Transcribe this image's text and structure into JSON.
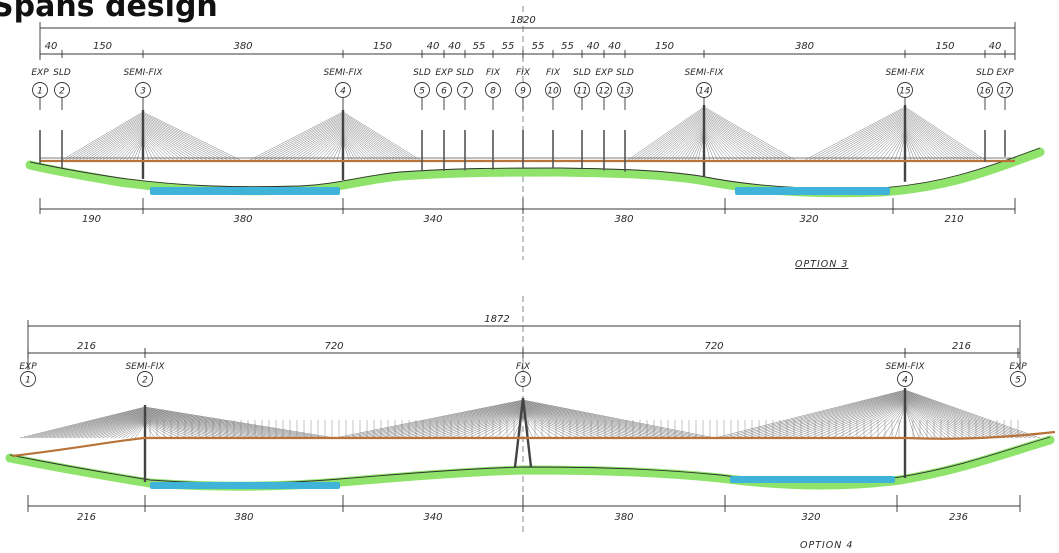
{
  "title_partial": "Spans design",
  "option3": {
    "title": "OPTION 3",
    "total": "1820",
    "top_spans": [
      "40",
      "150",
      "380",
      "150",
      "40",
      "40",
      "55",
      "55",
      "55",
      "55",
      "40",
      "40",
      "150",
      "380",
      "150",
      "40"
    ],
    "bottom_spans": [
      "190",
      "380",
      "340",
      "380",
      "320",
      "210"
    ],
    "supports": [
      {
        "num": "1",
        "type": "EXP"
      },
      {
        "num": "2",
        "type": "SLD"
      },
      {
        "num": "3",
        "type": "SEMI-FIX"
      },
      {
        "num": "4",
        "type": "SEMI-FIX"
      },
      {
        "num": "5",
        "type": "SLD"
      },
      {
        "num": "6",
        "type": "EXP"
      },
      {
        "num": "7",
        "type": "SLD"
      },
      {
        "num": "8",
        "type": "FIX"
      },
      {
        "num": "9",
        "type": "FIX"
      },
      {
        "num": "10",
        "type": "FIX"
      },
      {
        "num": "11",
        "type": "SLD"
      },
      {
        "num": "12",
        "type": "EXP"
      },
      {
        "num": "13",
        "type": "SLD"
      },
      {
        "num": "14",
        "type": "SEMI-FIX"
      },
      {
        "num": "15",
        "type": "SEMI-FIX"
      },
      {
        "num": "16",
        "type": "SLD"
      },
      {
        "num": "17",
        "type": "EXP"
      }
    ]
  },
  "option4": {
    "title": "OPTION 4",
    "total": "1872",
    "top_spans": [
      "216",
      "720",
      "720",
      "216"
    ],
    "bottom_spans": [
      "216",
      "380",
      "340",
      "380",
      "320",
      "236"
    ],
    "supports": [
      {
        "num": "1",
        "type": "EXP"
      },
      {
        "num": "2",
        "type": "SEMI-FIX"
      },
      {
        "num": "3",
        "type": "FIX"
      },
      {
        "num": "4",
        "type": "SEMI-FIX"
      },
      {
        "num": "5",
        "type": "EXP"
      }
    ]
  },
  "colors": {
    "ground": "#8fe36a",
    "water": "#3fb4d8",
    "deck": "#b7733a",
    "line": "#3a3a3a"
  }
}
